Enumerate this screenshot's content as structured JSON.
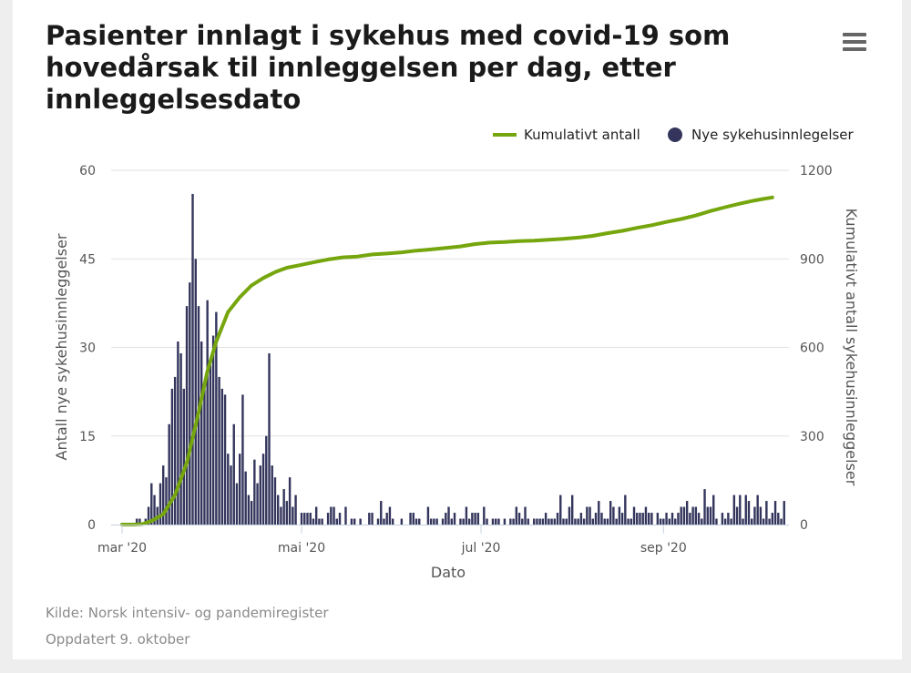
{
  "title": "Pasienter innlagt i sykehus med covid-19 som hovedårsak til innleggelsen per dag, etter innleggelsesdato",
  "menu_icon": "hamburger-menu-icon",
  "footer": {
    "source": "Kilde: Norsk intensiv- og pandemiregister",
    "updated": "Oppdatert 9. oktober"
  },
  "colors": {
    "bar": "#33355c",
    "line": "#76a60d",
    "grid": "#e2e2e2",
    "axis": "#c7d2df"
  },
  "chart_data": {
    "type": "bar+line",
    "xlabel": "Dato",
    "ylabel_left": "Antall nye sykehusinnleggelser",
    "ylabel_right": "Kumulativt antall sykehusinnleggelser",
    "ylim_left": [
      0,
      60
    ],
    "ylim_right": [
      0,
      1200
    ],
    "yticks_left": [
      "0",
      "15",
      "30",
      "45",
      "60"
    ],
    "yticks_right": [
      "0",
      "300",
      "600",
      "900",
      "1200"
    ],
    "xticks": [
      {
        "label": "mar '20",
        "day": 0
      },
      {
        "label": "mai '20",
        "day": 61
      },
      {
        "label": "jul '20",
        "day": 122
      },
      {
        "label": "sep '20",
        "day": 184
      }
    ],
    "start_date": "2020-03-01",
    "series": [
      {
        "name": "Nye sykehusinnlegelser",
        "type": "bar",
        "axis": "left",
        "day_start": 0,
        "values": [
          0,
          0,
          0,
          0,
          0,
          1,
          1,
          0,
          1,
          3,
          7,
          5,
          3,
          7,
          10,
          8,
          17,
          23,
          25,
          31,
          29,
          23,
          37,
          41,
          56,
          45,
          37,
          31,
          23,
          38,
          27,
          32,
          36,
          25,
          23,
          22,
          12,
          10,
          17,
          7,
          12,
          22,
          9,
          5,
          4,
          11,
          7,
          10,
          12,
          15,
          29,
          10,
          8,
          5,
          3,
          6,
          4,
          8,
          3,
          5,
          0,
          2,
          2,
          2,
          2,
          1,
          3,
          1,
          1,
          0,
          2,
          3,
          3,
          1,
          2,
          0,
          3,
          0,
          1,
          1,
          0,
          1,
          0,
          0,
          2,
          2,
          0,
          1,
          4,
          1,
          2,
          3,
          1,
          0,
          0,
          1,
          0,
          0,
          2,
          2,
          1,
          1,
          0,
          0,
          3,
          1,
          1,
          1,
          0,
          1,
          2,
          3,
          1,
          2,
          0,
          1,
          1,
          3,
          1,
          2,
          2,
          2,
          0,
          3,
          1,
          0,
          1,
          1,
          1,
          0,
          1,
          0,
          1,
          1,
          3,
          2,
          1,
          3,
          1,
          0,
          1,
          1,
          1,
          1,
          2,
          1,
          1,
          1,
          2,
          5,
          1,
          1,
          3,
          5,
          1,
          1,
          2,
          1,
          3,
          3,
          1,
          2,
          4,
          2,
          1,
          1,
          4,
          3,
          1,
          3,
          2,
          5,
          1,
          1,
          3,
          2,
          2,
          2,
          3,
          2,
          2,
          0,
          2,
          1,
          1,
          2,
          1,
          2,
          1,
          2,
          3,
          3,
          4,
          2,
          3,
          3,
          2,
          1,
          6,
          3,
          3,
          5,
          1,
          0,
          2,
          1,
          2,
          1,
          5,
          3,
          5,
          1,
          5,
          4,
          1,
          3,
          5,
          3,
          1,
          4,
          1,
          2,
          4,
          2,
          1,
          4
        ]
      },
      {
        "name": "Kumulativt antall",
        "type": "line",
        "axis": "right",
        "points": [
          [
            0,
            0
          ],
          [
            4,
            0
          ],
          [
            7,
            2
          ],
          [
            10,
            12
          ],
          [
            14,
            35
          ],
          [
            18,
            100
          ],
          [
            22,
            210
          ],
          [
            26,
            380
          ],
          [
            29,
            520
          ],
          [
            32,
            620
          ],
          [
            36,
            720
          ],
          [
            40,
            770
          ],
          [
            44,
            810
          ],
          [
            48,
            835
          ],
          [
            52,
            855
          ],
          [
            56,
            870
          ],
          [
            60,
            878
          ],
          [
            65,
            888
          ],
          [
            70,
            898
          ],
          [
            75,
            905
          ],
          [
            80,
            908
          ],
          [
            85,
            915
          ],
          [
            90,
            918
          ],
          [
            95,
            922
          ],
          [
            100,
            928
          ],
          [
            105,
            932
          ],
          [
            110,
            937
          ],
          [
            115,
            942
          ],
          [
            120,
            950
          ],
          [
            125,
            955
          ],
          [
            130,
            957
          ],
          [
            135,
            960
          ],
          [
            140,
            962
          ],
          [
            145,
            965
          ],
          [
            150,
            968
          ],
          [
            155,
            972
          ],
          [
            160,
            978
          ],
          [
            165,
            987
          ],
          [
            170,
            995
          ],
          [
            175,
            1005
          ],
          [
            180,
            1014
          ],
          [
            185,
            1025
          ],
          [
            190,
            1035
          ],
          [
            195,
            1047
          ],
          [
            200,
            1062
          ],
          [
            205,
            1075
          ],
          [
            210,
            1087
          ],
          [
            215,
            1098
          ],
          [
            218,
            1103
          ],
          [
            221,
            1108
          ]
        ]
      }
    ]
  }
}
